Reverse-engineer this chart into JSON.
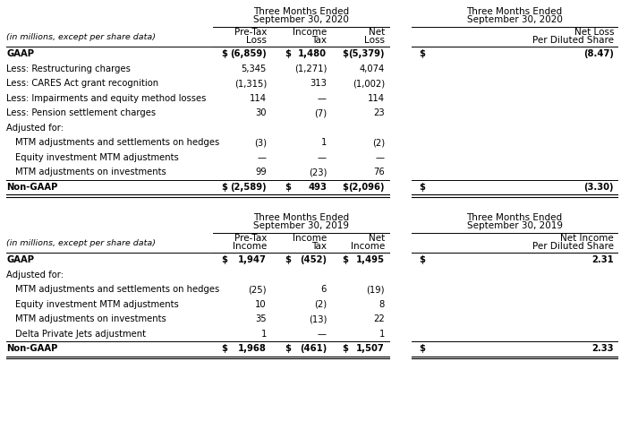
{
  "bg_color": "#ffffff",
  "table1": {
    "header1": "Three Months Ended",
    "header2": "September 30, 2020",
    "header3": "Three Months Ended",
    "header4": "September 30, 2020",
    "subheader_left": "(in millions, except per share data)",
    "col1_header": [
      "Pre-Tax",
      "Loss"
    ],
    "col2_header": [
      "Income",
      "Tax"
    ],
    "col3_header": [
      "Net",
      "Loss"
    ],
    "col4_header": [
      "Net Loss",
      "Per Diluted Share"
    ],
    "rows": [
      {
        "label": "GAAP",
        "indent": 0,
        "bold": true,
        "dollar1": true,
        "v1": "(6,859)",
        "dollar2": true,
        "v2": "1,480",
        "dollar3": true,
        "v3": "(5,379)",
        "dollar4": true,
        "v4": "(8.47)",
        "top_border": true,
        "bottom_border": false
      },
      {
        "label": "Less: Restructuring charges",
        "indent": 0,
        "bold": false,
        "dollar1": false,
        "v1": "5,345",
        "dollar2": false,
        "v2": "(1,271)",
        "dollar3": false,
        "v3": "4,074",
        "dollar4": false,
        "v4": "",
        "top_border": false,
        "bottom_border": false
      },
      {
        "label": "Less: CARES Act grant recognition",
        "indent": 0,
        "bold": false,
        "dollar1": false,
        "v1": "(1,315)",
        "dollar2": false,
        "v2": "313",
        "dollar3": false,
        "v3": "(1,002)",
        "dollar4": false,
        "v4": "",
        "top_border": false,
        "bottom_border": false
      },
      {
        "label": "Less: Impairments and equity method losses",
        "indent": 0,
        "bold": false,
        "dollar1": false,
        "v1": "114",
        "dollar2": false,
        "v2": "—",
        "dollar3": false,
        "v3": "114",
        "dollar4": false,
        "v4": "",
        "top_border": false,
        "bottom_border": false
      },
      {
        "label": "Less: Pension settlement charges",
        "indent": 0,
        "bold": false,
        "dollar1": false,
        "v1": "30",
        "dollar2": false,
        "v2": "(7)",
        "dollar3": false,
        "v3": "23",
        "dollar4": false,
        "v4": "",
        "top_border": false,
        "bottom_border": false
      },
      {
        "label": "Adjusted for:",
        "indent": 0,
        "bold": false,
        "dollar1": false,
        "v1": "",
        "dollar2": false,
        "v2": "",
        "dollar3": false,
        "v3": "",
        "dollar4": false,
        "v4": "",
        "top_border": false,
        "bottom_border": false
      },
      {
        "label": "MTM adjustments and settlements on hedges",
        "indent": 1,
        "bold": false,
        "dollar1": false,
        "v1": "(3)",
        "dollar2": false,
        "v2": "1",
        "dollar3": false,
        "v3": "(2)",
        "dollar4": false,
        "v4": "",
        "top_border": false,
        "bottom_border": false
      },
      {
        "label": "Equity investment MTM adjustments",
        "indent": 1,
        "bold": false,
        "dollar1": false,
        "v1": "—",
        "dollar2": false,
        "v2": "—",
        "dollar3": false,
        "v3": "—",
        "dollar4": false,
        "v4": "",
        "top_border": false,
        "bottom_border": false
      },
      {
        "label": "MTM adjustments on investments",
        "indent": 1,
        "bold": false,
        "dollar1": false,
        "v1": "99",
        "dollar2": false,
        "v2": "(23)",
        "dollar3": false,
        "v3": "76",
        "dollar4": false,
        "v4": "",
        "top_border": false,
        "bottom_border": false
      },
      {
        "label": "Non-GAAP",
        "indent": 0,
        "bold": true,
        "dollar1": true,
        "v1": "(2,589)",
        "dollar2": true,
        "v2": "493",
        "dollar3": true,
        "v3": "(2,096)",
        "dollar4": true,
        "v4": "(3.30)",
        "top_border": true,
        "bottom_border": true
      }
    ]
  },
  "table2": {
    "header1": "Three Months Ended",
    "header2": "September 30, 2019",
    "header3": "Three Months Ended",
    "header4": "September 30, 2019",
    "subheader_left": "(in millions, except per share data)",
    "col1_header": [
      "Pre-Tax",
      "Income"
    ],
    "col2_header": [
      "Income",
      "Tax"
    ],
    "col3_header": [
      "Net",
      "Income"
    ],
    "col4_header": [
      "Net Income",
      "Per Diluted Share"
    ],
    "rows": [
      {
        "label": "GAAP",
        "indent": 0,
        "bold": true,
        "dollar1": true,
        "v1": "1,947",
        "dollar2": true,
        "v2": "(452)",
        "dollar3": true,
        "v3": "1,495",
        "dollar4": true,
        "v4": "2.31",
        "top_border": true,
        "bottom_border": false
      },
      {
        "label": "Adjusted for:",
        "indent": 0,
        "bold": false,
        "dollar1": false,
        "v1": "",
        "dollar2": false,
        "v2": "",
        "dollar3": false,
        "v3": "",
        "dollar4": false,
        "v4": "",
        "top_border": false,
        "bottom_border": false
      },
      {
        "label": "MTM adjustments and settlements on hedges",
        "indent": 1,
        "bold": false,
        "dollar1": false,
        "v1": "(25)",
        "dollar2": false,
        "v2": "6",
        "dollar3": false,
        "v3": "(19)",
        "dollar4": false,
        "v4": "",
        "top_border": false,
        "bottom_border": false
      },
      {
        "label": "Equity investment MTM adjustments",
        "indent": 1,
        "bold": false,
        "dollar1": false,
        "v1": "10",
        "dollar2": false,
        "v2": "(2)",
        "dollar3": false,
        "v3": "8",
        "dollar4": false,
        "v4": "",
        "top_border": false,
        "bottom_border": false
      },
      {
        "label": "MTM adjustments on investments",
        "indent": 1,
        "bold": false,
        "dollar1": false,
        "v1": "35",
        "dollar2": false,
        "v2": "(13)",
        "dollar3": false,
        "v3": "22",
        "dollar4": false,
        "v4": "",
        "top_border": false,
        "bottom_border": false
      },
      {
        "label": "Delta Private Jets adjustment",
        "indent": 1,
        "bold": false,
        "dollar1": false,
        "v1": "1",
        "dollar2": false,
        "v2": "—",
        "dollar3": false,
        "v3": "1",
        "dollar4": false,
        "v4": "",
        "top_border": false,
        "bottom_border": false
      },
      {
        "label": "Non-GAAP",
        "indent": 0,
        "bold": true,
        "dollar1": true,
        "v1": "1,968",
        "dollar2": true,
        "v2": "(461)",
        "dollar3": true,
        "v3": "1,507",
        "dollar4": true,
        "v4": "2.33",
        "top_border": true,
        "bottom_border": true
      }
    ]
  }
}
